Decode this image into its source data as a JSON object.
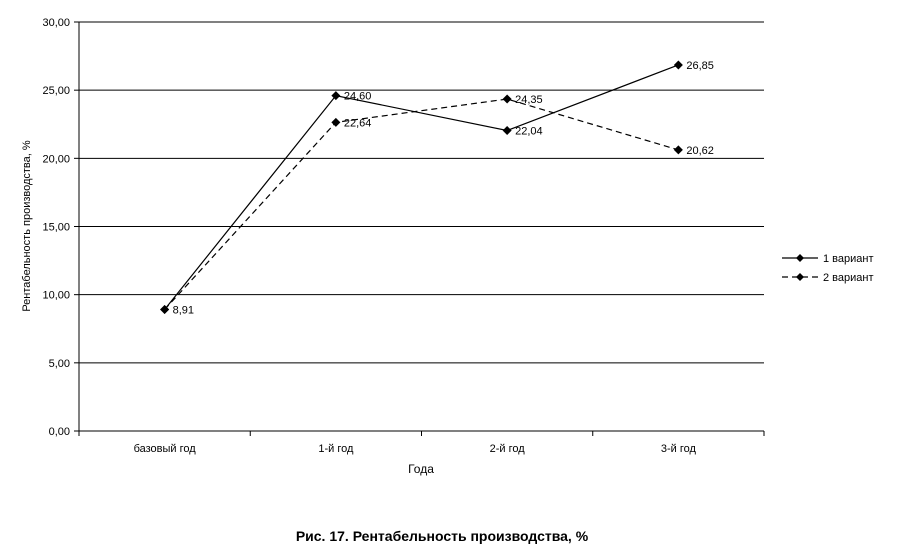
{
  "chart_data": {
    "type": "line",
    "categories": [
      "базовый год",
      "1-й год",
      "2-й год",
      "3-й год"
    ],
    "series": [
      {
        "name": "1 вариант",
        "values": [
          8.91,
          24.6,
          22.04,
          26.85
        ],
        "value_labels": [
          "8,91",
          "24,60",
          "22,04",
          "26,85"
        ],
        "style": "solid"
      },
      {
        "name": "2 вариант",
        "values": [
          8.91,
          22.64,
          24.35,
          20.62
        ],
        "value_labels": [
          "8,91",
          "22,64",
          "24,35",
          "20,62"
        ],
        "style": "dashed"
      }
    ],
    "xlabel": "Года",
    "ylabel": "Рентабельность производства, %",
    "ylim": [
      0,
      30
    ],
    "yticks": [
      0,
      5,
      10,
      15,
      20,
      25,
      30
    ],
    "ytick_labels": [
      "0,00",
      "5,00",
      "10,00",
      "15,00",
      "20,00",
      "25,00",
      "30,00"
    ],
    "grid": "horizontal",
    "legend": "right",
    "colors": {
      "line": "#000000",
      "grid": "#000000",
      "background": "#ffffff"
    }
  },
  "caption": "Рис. 17. Рентабельность производства, %"
}
